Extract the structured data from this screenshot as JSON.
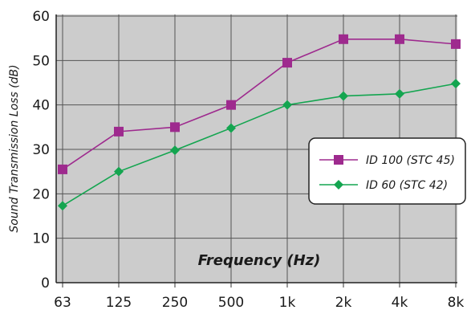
{
  "chart_data": {
    "type": "line",
    "x": [
      "63",
      "125",
      "250",
      "500",
      "1k",
      "2k",
      "4k",
      "8k"
    ],
    "xlabel": "Frequency (Hz)",
    "ylabel": "Sound Transmission Loss (dB)",
    "ylim": [
      0,
      60
    ],
    "yticks": [
      0,
      10,
      20,
      30,
      40,
      50,
      60
    ],
    "grid": true,
    "plot_background": "#cccccc",
    "legend_position": "right",
    "series": [
      {
        "name": "ID 100 (STC 45)",
        "color": "#9e2a8e",
        "marker": "square",
        "values": [
          25.5,
          34,
          35,
          40,
          49.5,
          54.8,
          54.8,
          53.7
        ]
      },
      {
        "name": "ID 60 (STC 42)",
        "color": "#14a550",
        "marker": "diamond",
        "values": [
          17.3,
          25,
          29.8,
          34.8,
          40,
          42,
          42.5,
          44.8
        ]
      }
    ]
  }
}
